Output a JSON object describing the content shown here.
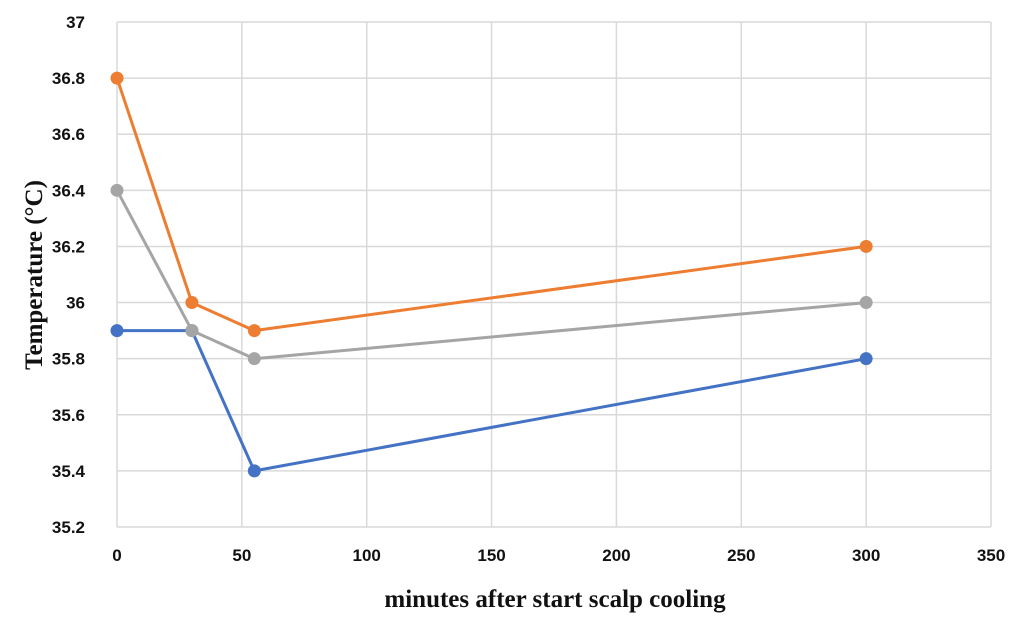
{
  "chart_data": {
    "type": "line",
    "title": "",
    "xlabel": "minutes after start scalp cooling",
    "ylabel": "Temperature (°C)",
    "xlim": [
      0,
      350
    ],
    "ylim": [
      35.2,
      37
    ],
    "x_ticks": [
      0,
      50,
      100,
      150,
      200,
      250,
      300,
      350
    ],
    "y_ticks": [
      35.2,
      35.4,
      35.6,
      35.8,
      36,
      36.2,
      36.4,
      36.6,
      36.8,
      37
    ],
    "x_tick_labels": [
      "0",
      "50",
      "100",
      "150",
      "200",
      "250",
      "300",
      "350"
    ],
    "y_tick_labels": [
      "35.2",
      "35.4",
      "35.6",
      "35.8",
      "36",
      "36.2",
      "36.4",
      "36.6",
      "36.8",
      "37"
    ],
    "grid": true,
    "legend": false,
    "series": [
      {
        "color": "#4472c4",
        "points": [
          [
            0,
            35.9
          ],
          [
            30,
            35.9
          ],
          [
            55,
            35.4
          ],
          [
            300,
            35.8
          ]
        ]
      },
      {
        "color": "#ed7d31",
        "points": [
          [
            0,
            36.8
          ],
          [
            30,
            36.0
          ],
          [
            55,
            35.9
          ],
          [
            300,
            36.2
          ]
        ]
      },
      {
        "color": "#a5a5a5",
        "points": [
          [
            0,
            36.4
          ],
          [
            30,
            35.9
          ],
          [
            55,
            35.8
          ],
          [
            300,
            36.0
          ]
        ]
      }
    ]
  }
}
